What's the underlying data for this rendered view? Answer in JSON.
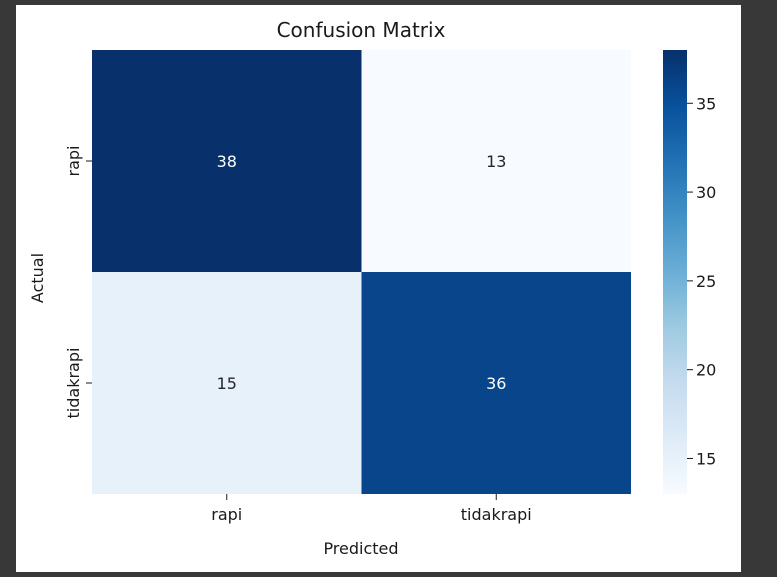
{
  "chart_data": {
    "type": "heatmap",
    "title": "Confusion Matrix",
    "xlabel": "Predicted",
    "ylabel": "Actual",
    "x_categories": [
      "rapi",
      "tidakrapi"
    ],
    "y_categories": [
      "rapi",
      "tidakrapi"
    ],
    "values": [
      [
        38,
        13
      ],
      [
        15,
        36
      ]
    ],
    "colormap": "Blues",
    "colorbar": {
      "range": [
        13,
        38
      ],
      "ticks": [
        15,
        20,
        25,
        30,
        35
      ]
    }
  },
  "colors": {
    "page_background": "#383838",
    "figure_background": "#ffffff"
  }
}
